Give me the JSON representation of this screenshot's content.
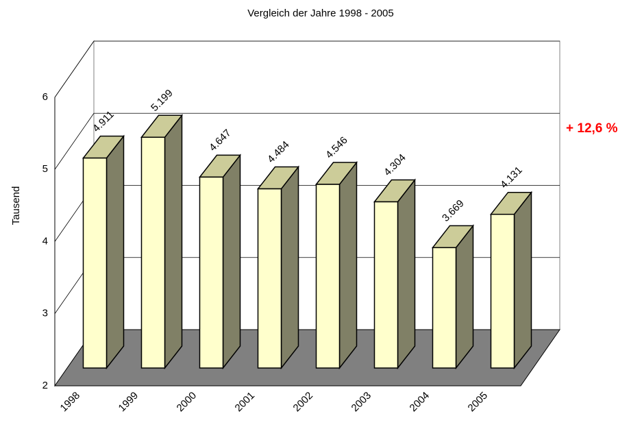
{
  "chart_data": {
    "type": "bar3d",
    "title": "Vergleich der Jahre 1998 - 2005",
    "ylabel": "Tausend",
    "annotation": "+ 12,6 %",
    "annotation_color": "#ff0000",
    "categories": [
      "1998",
      "1999",
      "2000",
      "2001",
      "2002",
      "2003",
      "2004",
      "2005"
    ],
    "values": [
      4.911,
      5.199,
      4.647,
      4.484,
      4.546,
      4.304,
      3.669,
      4.131
    ],
    "color": "#ffffcc",
    "side_color": "#808066",
    "top_color": "#cccc99",
    "floor_color": "#808080",
    "ylim": [
      2,
      6
    ],
    "yticks": [
      2,
      3,
      4,
      5,
      6
    ],
    "grid": true
  }
}
